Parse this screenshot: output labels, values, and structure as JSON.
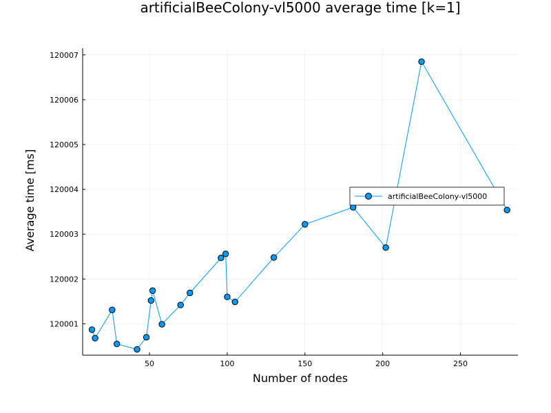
{
  "chart_data": {
    "type": "line",
    "title": "artificialBeeColony-vl5000 average time [k=1]",
    "xlabel": "Number of nodes",
    "ylabel": "Average time [ms]",
    "xlim": [
      7,
      287
    ],
    "ylim": [
      120000.3,
      120007.15
    ],
    "xticks": [
      50,
      100,
      150,
      200,
      250
    ],
    "xtick_labels": [
      "50",
      "100",
      "150",
      "200",
      "250"
    ],
    "yticks": [
      120001,
      120002,
      120003,
      120004,
      120005,
      120006,
      120007
    ],
    "ytick_labels": [
      "120001",
      "120002",
      "120003",
      "120004",
      "120005",
      "120006",
      "120007"
    ],
    "grid": true,
    "legend": {
      "position": "right",
      "entries": [
        "artificialBeeColony-vl5000"
      ]
    },
    "marker": "circle",
    "color": "#009af9",
    "series": [
      {
        "name": "artificialBeeColony-vl5000",
        "x": [
          13,
          15,
          26,
          29,
          42,
          48,
          51,
          52,
          58,
          70,
          76,
          96,
          99,
          100,
          105,
          130,
          150,
          181,
          202,
          225,
          280
        ],
        "y": [
          120000.87,
          120000.68,
          120001.31,
          120000.55,
          120000.43,
          120000.7,
          120001.52,
          120001.74,
          120000.99,
          120001.42,
          120001.69,
          120002.47,
          120002.56,
          120001.6,
          120001.49,
          120002.48,
          120003.22,
          120003.6,
          120002.7,
          120006.85,
          120003.54
        ]
      }
    ]
  }
}
